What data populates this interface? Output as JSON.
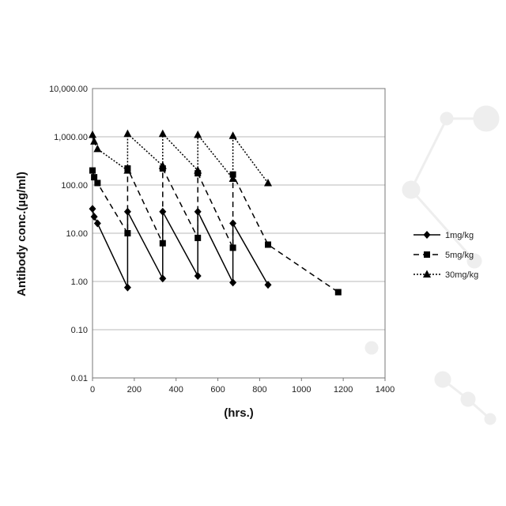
{
  "chart_data": {
    "type": "line",
    "xlabel": "(hrs.)",
    "ylabel": "Antibody conc.(µg/ml)",
    "title": "",
    "xlim": [
      0,
      1400
    ],
    "ylim": [
      0.01,
      10000
    ],
    "y_scale": "log",
    "x_ticks": [
      "0",
      "200",
      "400",
      "600",
      "800",
      "1000",
      "1200",
      "1400"
    ],
    "y_ticks": [
      "0.01",
      "0.10",
      "1.00",
      "10.00",
      "100.00",
      "1,000.00",
      "10,000.00"
    ],
    "grid": "horizontal",
    "legend_position": "right",
    "series": [
      {
        "name": "1mg/kg",
        "line_style": "solid",
        "marker": "diamond",
        "x": [
          0,
          8,
          24,
          168,
          168,
          336,
          336,
          504,
          504,
          672,
          672,
          840
        ],
        "y": [
          32,
          22,
          16,
          0.75,
          28,
          1.15,
          28,
          1.3,
          28,
          0.95,
          16,
          0.85
        ]
      },
      {
        "name": "5mg/kg",
        "line_style": "dashed",
        "marker": "square",
        "x": [
          0,
          8,
          24,
          168,
          168,
          336,
          336,
          504,
          504,
          672,
          672,
          840,
          1176
        ],
        "y": [
          200,
          145,
          110,
          10,
          220,
          6.2,
          220,
          8,
          175,
          5,
          165,
          5.8,
          0.6
        ]
      },
      {
        "name": "30mg/kg",
        "line_style": "dotted",
        "marker": "triangle",
        "x": [
          0,
          8,
          24,
          168,
          168,
          336,
          336,
          504,
          504,
          672,
          672,
          840
        ],
        "y": [
          1100,
          800,
          560,
          200,
          1150,
          250,
          1150,
          200,
          1100,
          135,
          1050,
          110
        ]
      }
    ]
  }
}
